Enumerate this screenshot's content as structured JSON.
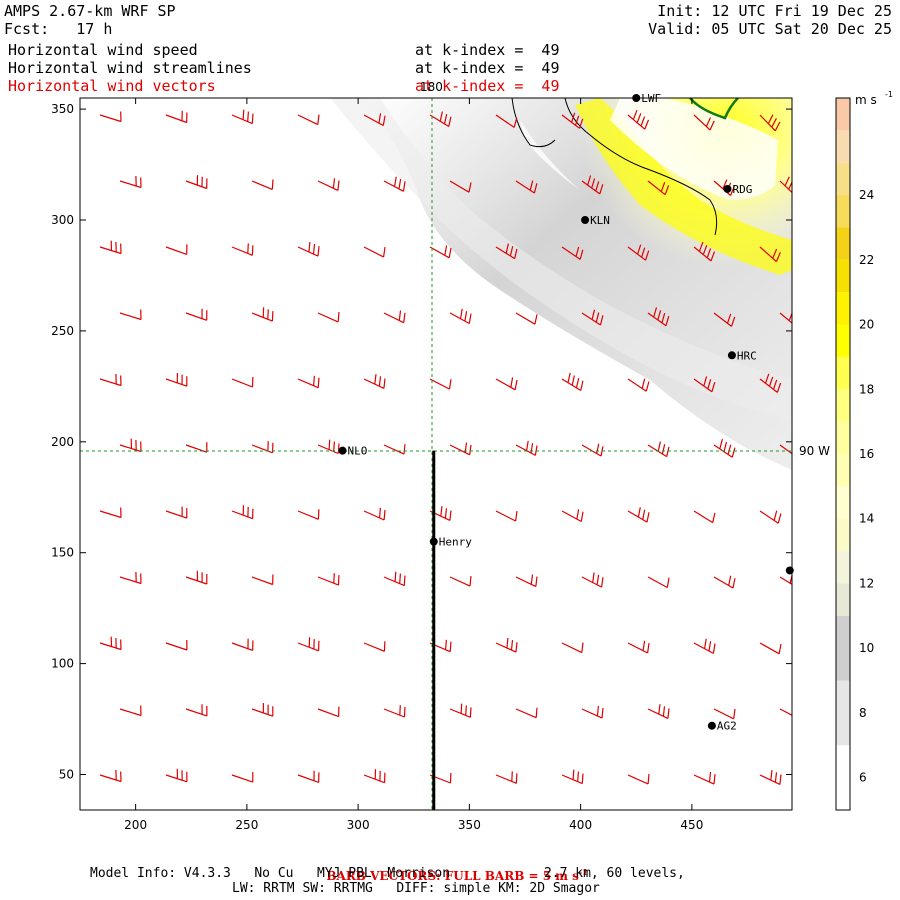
{
  "header": {
    "model_title": "AMPS 2.67-km WRF SP",
    "fcst": "Fcst:   17 h",
    "init": "Init: 12 UTC Fri 19 Dec 25",
    "valid": "Valid: 05 UTC Sat 20 Dec 25"
  },
  "fields": [
    {
      "name": "Horizontal wind speed",
      "level": "at k-index =  49",
      "color": "#000000"
    },
    {
      "name": "Horizontal wind streamlines",
      "level": "at k-index =  49",
      "color": "#000000"
    },
    {
      "name": "Horizontal wind vectors",
      "level": "at k-index =  49",
      "color": "#e00000"
    }
  ],
  "map": {
    "x_ticks": [
      200,
      250,
      300,
      350,
      400,
      450
    ],
    "y_ticks": [
      50,
      100,
      150,
      200,
      250,
      300,
      350
    ],
    "x_range": [
      175,
      495
    ],
    "y_range": [
      34,
      355
    ],
    "meridian_label": "180",
    "parallel_label": "90 W",
    "stations": [
      {
        "name": "LWF",
        "x": 425,
        "y": 355
      },
      {
        "name": "RDG",
        "x": 466,
        "y": 314
      },
      {
        "name": "KLN",
        "x": 402,
        "y": 300
      },
      {
        "name": "HRC",
        "x": 468,
        "y": 239
      },
      {
        "name": "NLO",
        "x": 293,
        "y": 196
      },
      {
        "name": "Henry",
        "x": 334,
        "y": 155
      },
      {
        "name": "",
        "x": 494,
        "y": 142
      },
      {
        "name": "AG2",
        "x": 459,
        "y": 72
      }
    ],
    "section_line": {
      "x": 334,
      "y_start": 34,
      "y_end": 196
    }
  },
  "colorbar": {
    "unit": "m s",
    "unit_exp": "-1",
    "range": [
      5,
      27
    ],
    "ticks": [
      6,
      8,
      10,
      12,
      14,
      16,
      18,
      20,
      22,
      24
    ],
    "levels": [
      {
        "from": 5,
        "to": 7,
        "color": "#ffffff"
      },
      {
        "from": 7,
        "to": 9,
        "color": "#e6e6e6"
      },
      {
        "from": 9,
        "to": 11,
        "color": "#cfcfcf"
      },
      {
        "from": 11,
        "to": 12,
        "color": "#e8e8d6"
      },
      {
        "from": 12,
        "to": 13,
        "color": "#f4f4dc"
      },
      {
        "from": 13,
        "to": 14,
        "color": "#fbfbc8"
      },
      {
        "from": 14,
        "to": 15,
        "color": "#ffffd2"
      },
      {
        "from": 15,
        "to": 16,
        "color": "#ffffb4"
      },
      {
        "from": 16,
        "to": 17,
        "color": "#ffffa0"
      },
      {
        "from": 17,
        "to": 18,
        "color": "#ffff80"
      },
      {
        "from": 18,
        "to": 19,
        "color": "#ffff50"
      },
      {
        "from": 19,
        "to": 20,
        "color": "#ffff00"
      },
      {
        "from": 20,
        "to": 21,
        "color": "#fff200"
      },
      {
        "from": 21,
        "to": 22,
        "color": "#f6e000"
      },
      {
        "from": 22,
        "to": 23,
        "color": "#f3d218"
      },
      {
        "from": 23,
        "to": 24,
        "color": "#f6dc5a"
      },
      {
        "from": 24,
        "to": 25,
        "color": "#f7df87"
      },
      {
        "from": 25,
        "to": 26,
        "color": "#f8dcb0"
      },
      {
        "from": 26,
        "to": 27,
        "color": "#f9c9a8"
      }
    ]
  },
  "footer": {
    "barb_label": "BARB VECTORS: FULL BARB = 5 m s",
    "barb_exp": "-1",
    "model_info": "Model Info: V4.3.3   No Cu   MYJ PBL  Morrison            2.7 km, 60 levels,",
    "model_info2": "LW: RRTM SW: RRTMG   DIFF: simple KM: 2D Smagor"
  },
  "style": {
    "barb_color": "#e00000",
    "grid_color": "#1f9a1f",
    "coast_color": "#107a10"
  }
}
